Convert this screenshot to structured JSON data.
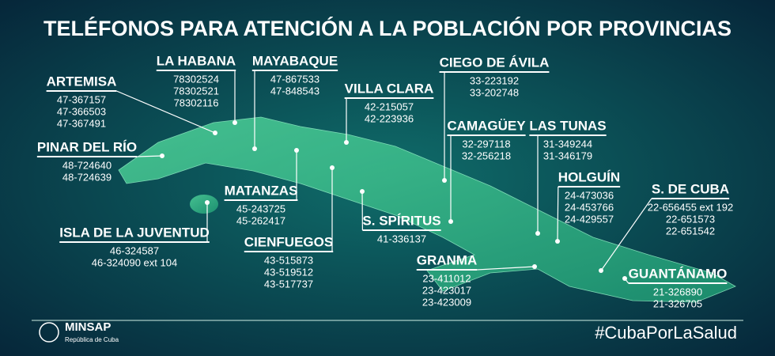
{
  "title": "TELÉFONOS PARA ATENCIÓN A LA POBLACIÓN POR PROVINCIAS",
  "provinces": [
    {
      "name": "ARTEMISA",
      "phones": [
        "47-367157",
        "47-366503",
        "47-367491"
      ]
    },
    {
      "name": "LA HABANA",
      "phones": [
        "78302524",
        "78302521",
        "78302116"
      ]
    },
    {
      "name": "MAYABAQUE",
      "phones": [
        "47-867533",
        "47-848543"
      ]
    },
    {
      "name": "VILLA CLARA",
      "phones": [
        "42-215057",
        "42-223936"
      ]
    },
    {
      "name": "CIEGO DE ÁVILA",
      "phones": [
        "33-223192",
        "33-202748"
      ]
    },
    {
      "name": "PINAR DEL RÍO",
      "phones": [
        "48-724640",
        "48-724639"
      ]
    },
    {
      "name": "CAMAGÜEY",
      "phones": [
        "32-297118",
        "32-256218"
      ]
    },
    {
      "name": "LAS TUNAS",
      "phones": [
        "31-349244",
        "31-346179"
      ]
    },
    {
      "name": "HOLGUÍN",
      "phones": [
        "24-473036",
        "24-453766",
        "24-429557"
      ]
    },
    {
      "name": "MATANZAS",
      "phones": [
        "45-243725",
        "45-262417"
      ]
    },
    {
      "name": "S. DE CUBA",
      "phones": [
        "22-656455 ext 192",
        "22-651573",
        "22-651542"
      ]
    },
    {
      "name": "S. SPÍRITUS",
      "phones": [
        "41-336137"
      ]
    },
    {
      "name": "ISLA DE LA JUVENTUD",
      "phones": [
        "46-324587",
        "46-324090 ext 104"
      ]
    },
    {
      "name": "CIENFUEGOS",
      "phones": [
        "43-515873",
        "43-519512",
        "43-517737"
      ]
    },
    {
      "name": "GRANMA",
      "phones": [
        "23-411012",
        "23-423017",
        "23-423009"
      ]
    },
    {
      "name": "GUANTÁNAMO",
      "phones": [
        "21-326890",
        "21-326705"
      ]
    }
  ],
  "footer": {
    "logo": "MINSAP",
    "logo_subtitle": "República de Cuba",
    "hashtag": "#CubaPorLaSalud"
  }
}
